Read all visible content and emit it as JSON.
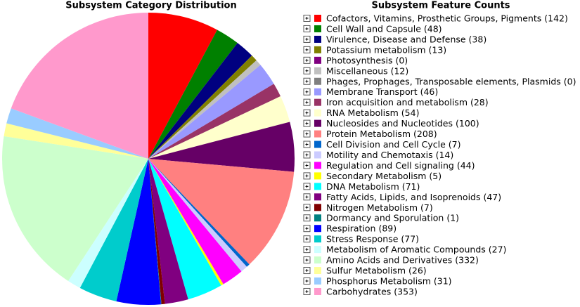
{
  "chart_data": {
    "type": "pie",
    "title": "Subsystem Category Distribution",
    "legend_title": "Subsystem Feature Counts",
    "categories": [
      "Cofactors, Vitamins, Prosthetic Groups, Pigments (142)",
      "Cell Wall and Capsule (48)",
      "Virulence, Disease and Defense (38)",
      "Potassium metabolism (13)",
      "Photosynthesis (0)",
      "Miscellaneous (12)",
      "Phages, Prophages, Transposable elements, Plasmids (0)",
      "Membrane Transport (46)",
      "Iron acquisition and metabolism (28)",
      "RNA Metabolism (54)",
      "Nucleosides and Nucleotides (100)",
      "Protein Metabolism (208)",
      "Cell Division and Cell Cycle (7)",
      "Motility and Chemotaxis (14)",
      "Regulation and Cell signaling (44)",
      "Secondary Metabolism (5)",
      "DNA Metabolism (71)",
      "Fatty Acids, Lipids, and Isoprenoids (47)",
      "Nitrogen Metabolism (7)",
      "Dormancy and Sporulation (1)",
      "Respiration (89)",
      "Stress Response (77)",
      "Metabolism of Aromatic Compounds (27)",
      "Amino Acids and Derivatives (332)",
      "Sulfur Metabolism (26)",
      "Phosphorus Metabolism (31)",
      "Carbohydrates (353)"
    ],
    "values": [
      142,
      48,
      38,
      13,
      0,
      12,
      0,
      46,
      28,
      54,
      100,
      208,
      7,
      14,
      44,
      5,
      71,
      47,
      7,
      1,
      89,
      77,
      27,
      332,
      26,
      31,
      353
    ],
    "colors": [
      "#ff0000",
      "#008000",
      "#000080",
      "#808000",
      "#800080",
      "#c0c0c0",
      "#808080",
      "#9999ff",
      "#993366",
      "#ffffcc",
      "#660066",
      "#ff8080",
      "#0066cc",
      "#ccccff",
      "#ff00ff",
      "#ffff00",
      "#00ffff",
      "#800080",
      "#800000",
      "#008080",
      "#0000ff",
      "#00cccc",
      "#ccffff",
      "#ccffcc",
      "#ffff99",
      "#99ccff",
      "#ff99cc"
    ]
  }
}
